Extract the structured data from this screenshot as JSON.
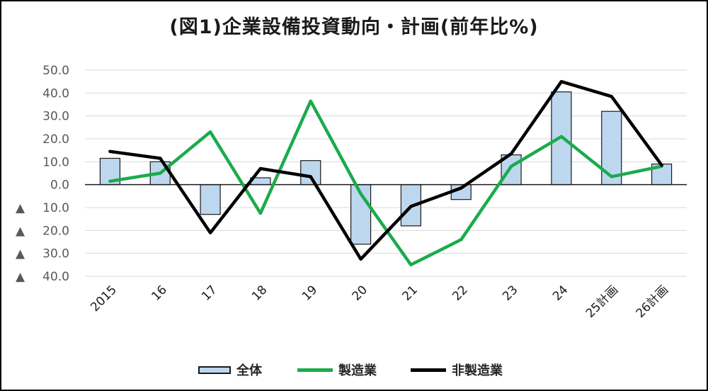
{
  "chart_data": {
    "type": "bar+line",
    "title": "(図1)企業設備投資動向・計画(前年比%)",
    "categories": [
      "2015",
      "16",
      "17",
      "18",
      "19",
      "20",
      "21",
      "22",
      "23",
      "24",
      "25計画",
      "26計画"
    ],
    "ylim": [
      -40,
      50
    ],
    "yticks": [
      50,
      40,
      30,
      20,
      10,
      0,
      -10,
      -20,
      -30,
      -40
    ],
    "ytick_labels": [
      "50.0",
      "40.0",
      "30.0",
      "20.0",
      "10.0",
      "0.0",
      "▲ 10.0",
      "▲ 20.0",
      "▲ 30.0",
      "▲ 40.0"
    ],
    "grid": true,
    "legend_position": "bottom",
    "series": [
      {
        "name": "全体",
        "kind": "bar",
        "color": "#bdd7ee",
        "values": [
          11.5,
          10.0,
          -13.0,
          3.0,
          10.5,
          -26.0,
          -18.0,
          -6.5,
          13.0,
          40.5,
          32.0,
          9.0
        ]
      },
      {
        "name": "製造業",
        "kind": "line",
        "color": "#1aab4b",
        "values": [
          1.5,
          5.0,
          23.0,
          -12.5,
          36.5,
          -4.0,
          -35.0,
          -24.0,
          8.0,
          21.0,
          3.5,
          8.0
        ]
      },
      {
        "name": "非製造業",
        "kind": "line",
        "color": "#000000",
        "values": [
          14.5,
          11.5,
          -21.0,
          7.0,
          3.5,
          -32.5,
          -9.5,
          -1.5,
          13.5,
          45.0,
          38.5,
          8.5
        ]
      }
    ]
  }
}
